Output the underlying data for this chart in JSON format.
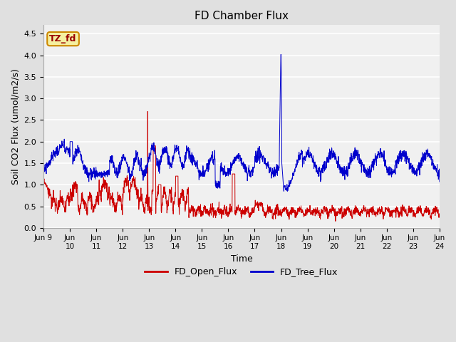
{
  "title": "FD Chamber Flux",
  "xlabel": "Time",
  "ylabel": "Soil CO2 Flux (umol/m2/s)",
  "ylim": [
    0.0,
    4.7
  ],
  "yticks": [
    0.0,
    0.5,
    1.0,
    1.5,
    2.0,
    2.5,
    3.0,
    3.5,
    4.0,
    4.5
  ],
  "xtick_labels": [
    "Jun 9",
    "Jun\n10",
    "Jun\n11",
    "Jun\n12",
    "Jun\n13",
    "Jun\n14",
    "Jun\n15",
    "Jun\n16",
    "Jun\n17",
    "Jun\n18",
    "Jun\n19",
    "Jun\n20",
    "Jun\n21",
    "Jun\n22",
    "Jun\n23",
    "Jun\n24"
  ],
  "figure_bg": "#e0e0e0",
  "plot_bg": "#f0f0f0",
  "grid_color": "#ffffff",
  "open_flux_color": "#cc0000",
  "tree_flux_color": "#0000cc",
  "legend_open_label": "FD_Open_Flux",
  "legend_tree_label": "FD_Tree_Flux",
  "tag_text": "TZ_fd",
  "tag_bg_color": "#f5f0a0",
  "tag_border_color": "#cc8800",
  "tag_text_color": "#990000",
  "n_points": 2000,
  "days": 15
}
